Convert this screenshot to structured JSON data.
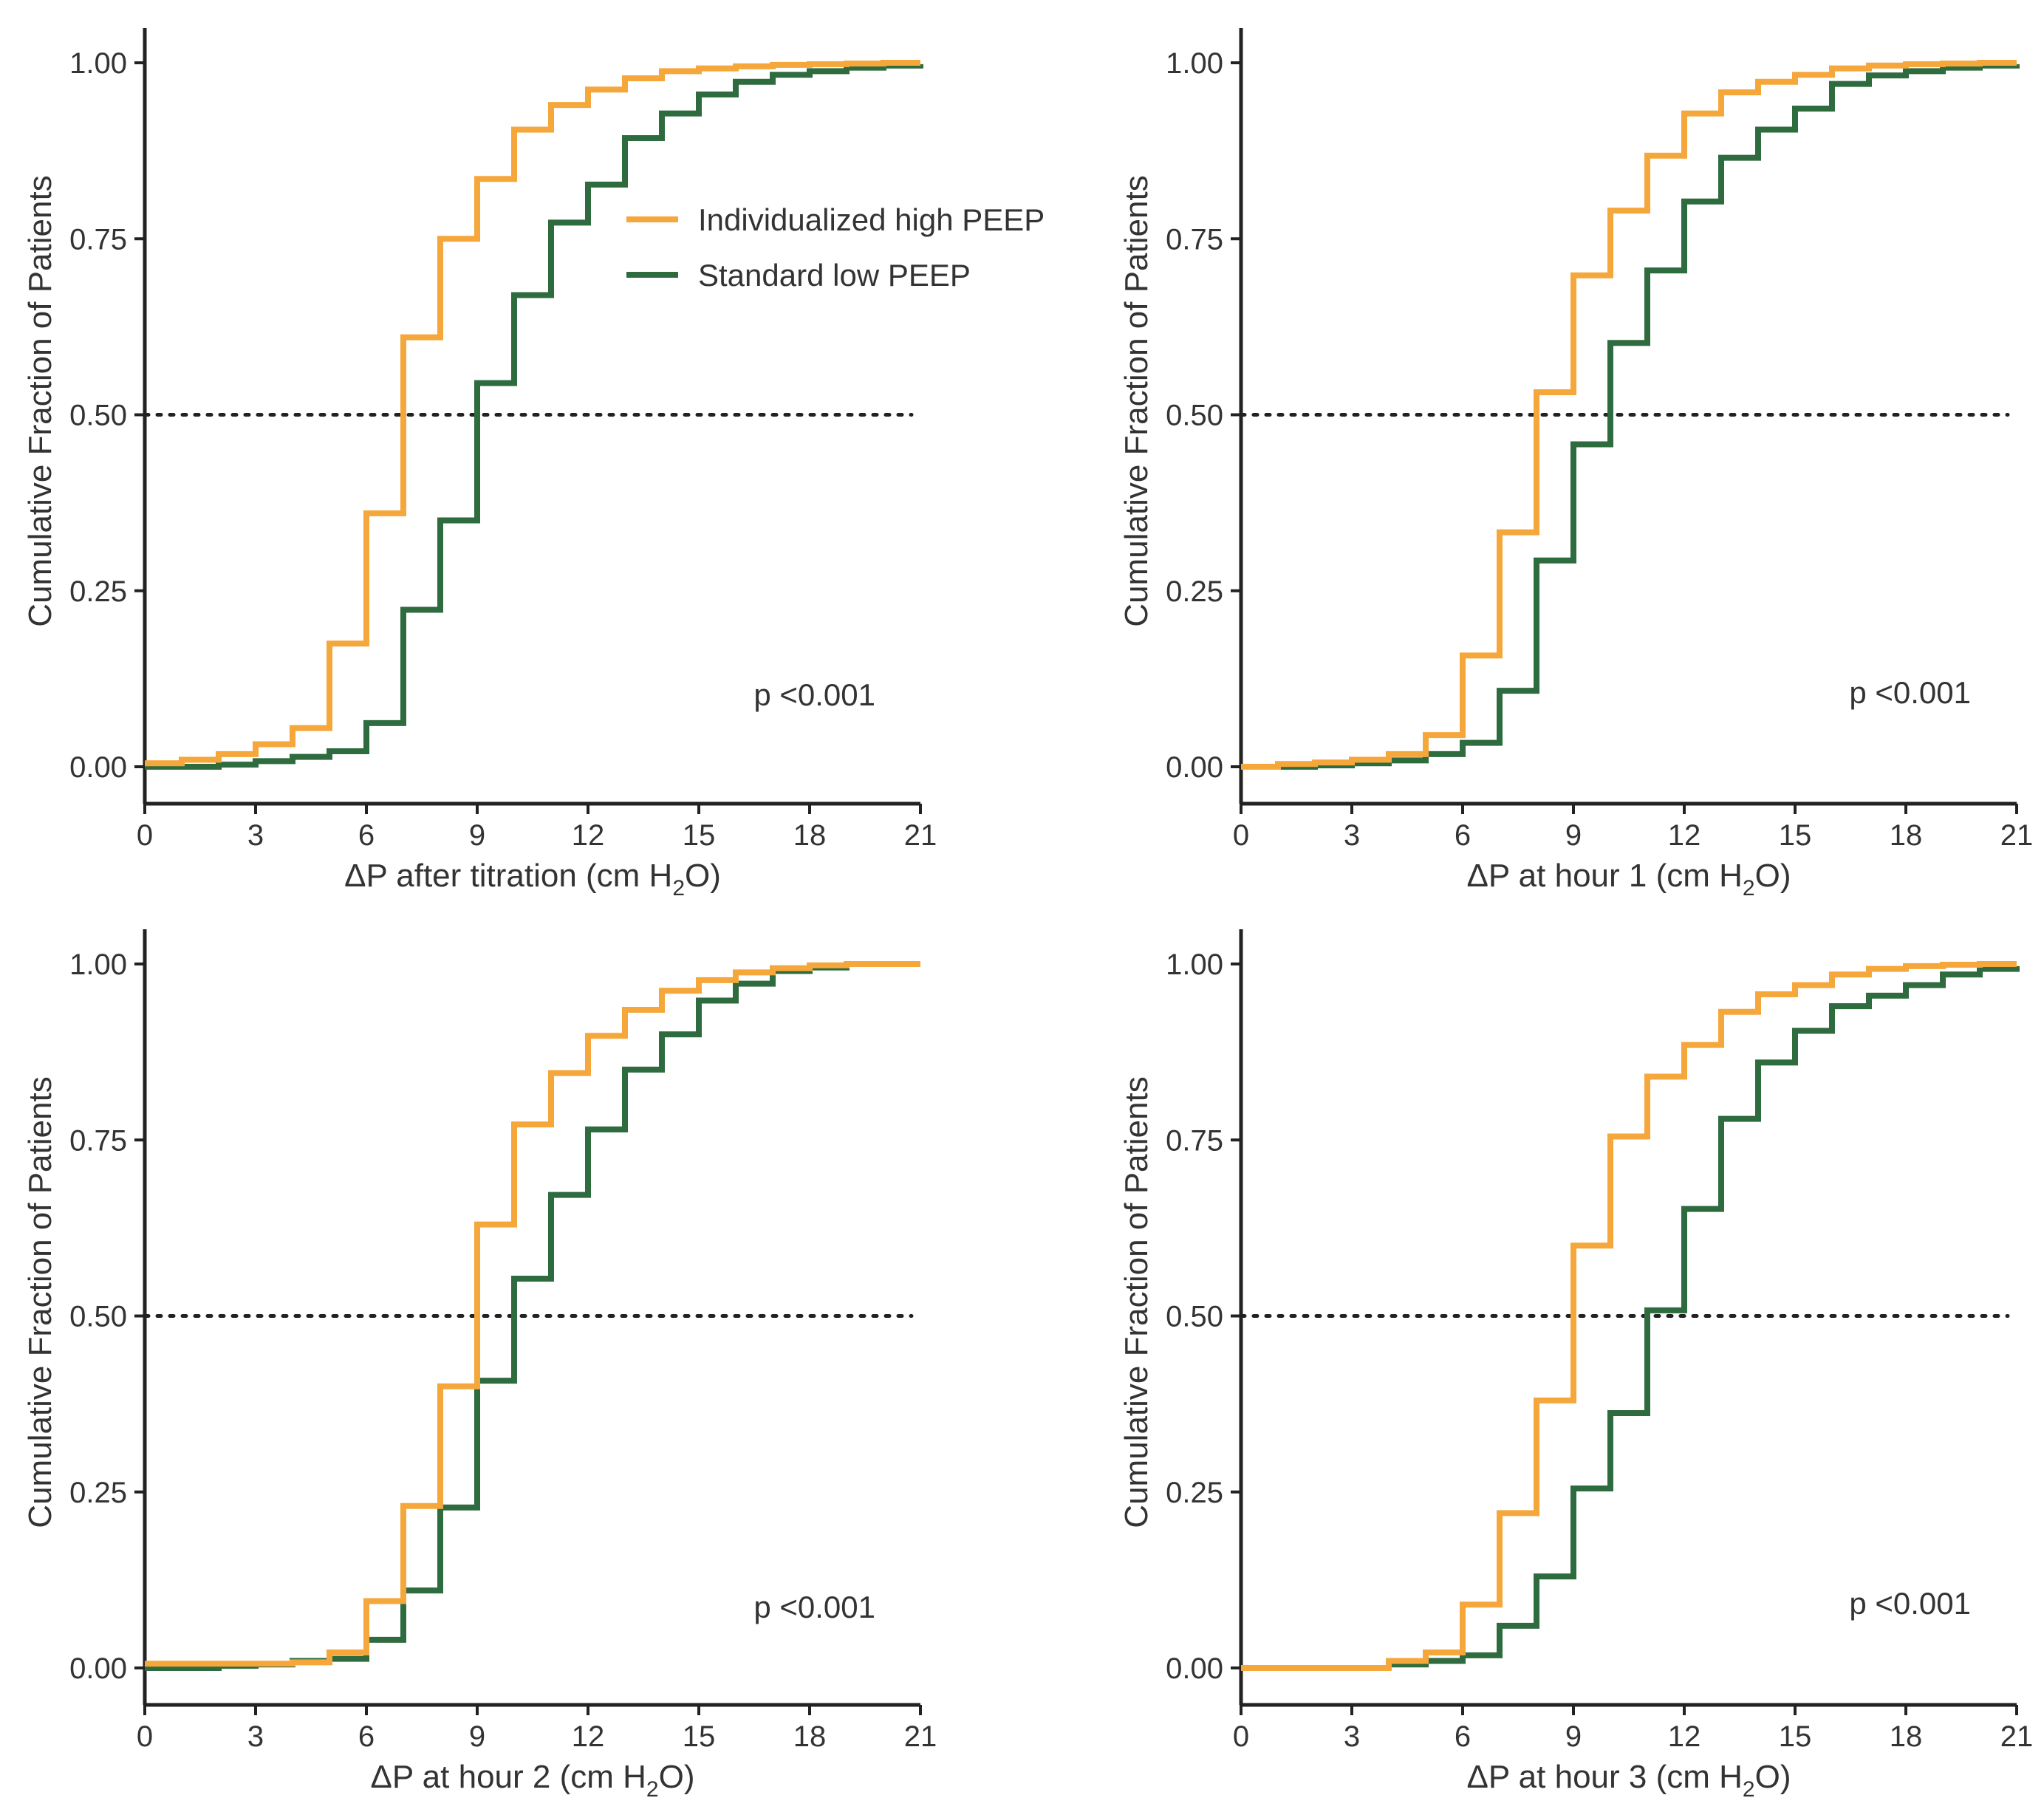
{
  "colors": {
    "high": "#F5A73B",
    "low": "#2E6B3E",
    "axis": "#222222",
    "ref": "#222222"
  },
  "legend": {
    "high_label": "Individualized high PEEP",
    "low_label": "Standard low PEEP"
  },
  "chart_data": [
    {
      "type": "line",
      "step": true,
      "ylabel": "Cumulative Fraction of Patients",
      "xlabel": {
        "prefix": "ΔP after titration (cm H",
        "sub": "2",
        "suffix": "O)"
      },
      "annotation": "p <0.001",
      "xlim": [
        0,
        21
      ],
      "ylim": [
        0,
        1
      ],
      "xticks": [
        "0",
        "3",
        "6",
        "9",
        "12",
        "15",
        "18",
        "21"
      ],
      "yticks": [
        "0.00",
        "0.25",
        "0.50",
        "0.75",
        "1.00"
      ],
      "reference_line": 0.5,
      "x": [
        0,
        1,
        2,
        3,
        4,
        5,
        6,
        7,
        8,
        9,
        10,
        11,
        12,
        13,
        14,
        15,
        16,
        17,
        18,
        19,
        20,
        21
      ],
      "series": [
        {
          "name": "Individualized high PEEP",
          "values": [
            0.005,
            0.01,
            0.018,
            0.032,
            0.055,
            0.175,
            0.36,
            0.61,
            0.75,
            0.835,
            0.905,
            0.94,
            0.962,
            0.978,
            0.988,
            0.992,
            0.995,
            0.997,
            0.998,
            0.999,
            1.0,
            1.0
          ]
        },
        {
          "name": "Standard low PEEP",
          "values": [
            0.0,
            0.0,
            0.003,
            0.008,
            0.014,
            0.022,
            0.062,
            0.223,
            0.35,
            0.545,
            0.67,
            0.773,
            0.827,
            0.893,
            0.928,
            0.955,
            0.973,
            0.983,
            0.988,
            0.993,
            0.996,
            0.998
          ]
        }
      ]
    },
    {
      "type": "line",
      "step": true,
      "ylabel": "Cumulative Fraction of Patients",
      "xlabel": {
        "prefix": "ΔP at hour 1 (cm H",
        "sub": "2",
        "suffix": "O)"
      },
      "annotation": "p <0.001",
      "xlim": [
        0,
        21
      ],
      "ylim": [
        0,
        1
      ],
      "xticks": [
        "0",
        "3",
        "6",
        "9",
        "12",
        "15",
        "18",
        "21"
      ],
      "yticks": [
        "0.00",
        "0.25",
        "0.50",
        "0.75",
        "1.00"
      ],
      "reference_line": 0.5,
      "x": [
        0,
        1,
        2,
        3,
        4,
        5,
        6,
        7,
        8,
        9,
        10,
        11,
        12,
        13,
        14,
        15,
        16,
        17,
        18,
        19,
        20,
        21
      ],
      "series": [
        {
          "name": "Individualized high PEEP",
          "values": [
            0.0,
            0.004,
            0.006,
            0.01,
            0.018,
            0.045,
            0.158,
            0.333,
            0.532,
            0.698,
            0.79,
            0.868,
            0.928,
            0.958,
            0.973,
            0.983,
            0.992,
            0.996,
            0.998,
            0.999,
            1.0,
            1.0
          ]
        },
        {
          "name": "Standard low PEEP",
          "values": [
            0.0,
            0.0,
            0.002,
            0.005,
            0.009,
            0.018,
            0.034,
            0.108,
            0.293,
            0.458,
            0.602,
            0.705,
            0.803,
            0.865,
            0.905,
            0.935,
            0.97,
            0.982,
            0.988,
            0.993,
            0.996,
            0.998
          ]
        }
      ]
    },
    {
      "type": "line",
      "step": true,
      "ylabel": "Cumulative Fraction of Patients",
      "xlabel": {
        "prefix": "ΔP at hour 2 (cm H",
        "sub": "2",
        "suffix": "O)"
      },
      "annotation": "p <0.001",
      "xlim": [
        0,
        21
      ],
      "ylim": [
        0,
        1
      ],
      "xticks": [
        "0",
        "3",
        "6",
        "9",
        "12",
        "15",
        "18",
        "21"
      ],
      "yticks": [
        "0.00",
        "0.25",
        "0.50",
        "0.75",
        "1.00"
      ],
      "reference_line": 0.5,
      "x": [
        0,
        1,
        2,
        3,
        4,
        5,
        6,
        7,
        8,
        9,
        10,
        11,
        12,
        13,
        14,
        15,
        16,
        17,
        18,
        19,
        20,
        21
      ],
      "series": [
        {
          "name": "Individualized high PEEP",
          "values": [
            0.006,
            0.006,
            0.006,
            0.006,
            0.008,
            0.022,
            0.095,
            0.23,
            0.4,
            0.63,
            0.772,
            0.845,
            0.898,
            0.935,
            0.962,
            0.977,
            0.988,
            0.994,
            0.998,
            1.0,
            1.0,
            1.0
          ]
        },
        {
          "name": "Standard low PEEP",
          "values": [
            0.0,
            0.0,
            0.003,
            0.005,
            0.01,
            0.013,
            0.04,
            0.11,
            0.228,
            0.408,
            0.553,
            0.672,
            0.765,
            0.85,
            0.9,
            0.948,
            0.972,
            0.99,
            0.995,
            1.0,
            1.0,
            1.0
          ]
        }
      ]
    },
    {
      "type": "line",
      "step": true,
      "ylabel": "Cumulative Fraction of Patients",
      "xlabel": {
        "prefix": "ΔP at hour 3 (cm H",
        "sub": "2",
        "suffix": "O)"
      },
      "annotation": "p <0.001",
      "xlim": [
        0,
        21
      ],
      "ylim": [
        0,
        1
      ],
      "xticks": [
        "0",
        "3",
        "6",
        "9",
        "12",
        "15",
        "18",
        "21"
      ],
      "yticks": [
        "0.00",
        "0.25",
        "0.50",
        "0.75",
        "1.00"
      ],
      "reference_line": 0.5,
      "x": [
        0,
        1,
        2,
        3,
        4,
        5,
        6,
        7,
        8,
        9,
        10,
        11,
        12,
        13,
        14,
        15,
        16,
        17,
        18,
        19,
        20,
        21
      ],
      "series": [
        {
          "name": "Individualized high PEEP",
          "values": [
            0.0,
            0.0,
            0.0,
            0.0,
            0.01,
            0.022,
            0.09,
            0.22,
            0.38,
            0.6,
            0.755,
            0.84,
            0.885,
            0.932,
            0.957,
            0.97,
            0.985,
            0.993,
            0.997,
            0.999,
            1.0,
            1.0
          ]
        },
        {
          "name": "Standard low PEEP",
          "values": [
            0.0,
            0.0,
            0.0,
            0.0,
            0.005,
            0.01,
            0.018,
            0.06,
            0.13,
            0.255,
            0.362,
            0.508,
            0.652,
            0.78,
            0.86,
            0.905,
            0.94,
            0.955,
            0.97,
            0.985,
            0.993,
            0.997
          ]
        }
      ]
    }
  ]
}
